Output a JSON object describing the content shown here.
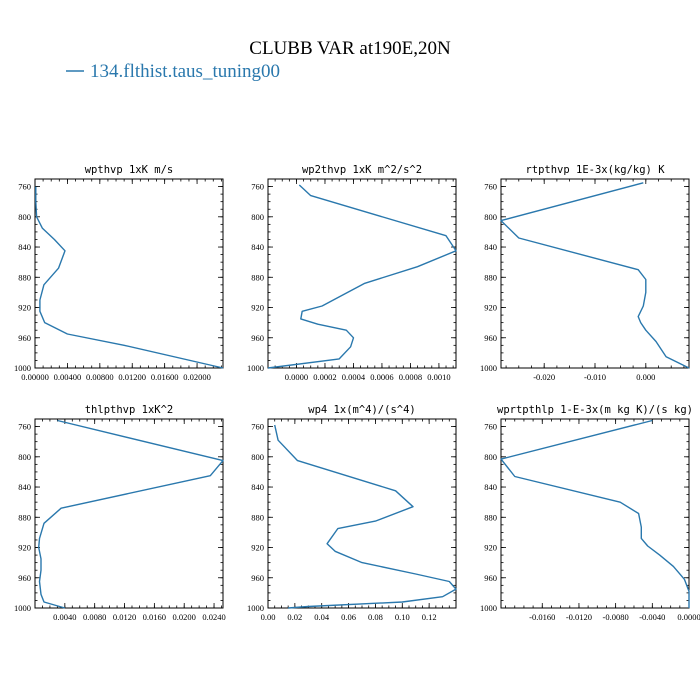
{
  "title": "CLUBB VAR at190E,20N",
  "legend": {
    "label": "134.flthist.taus_tuning00",
    "color": "#2a78ad"
  },
  "chart_data": [
    {
      "type": "line",
      "title": "wpthvp  1xK m/s",
      "xlim": [
        0.0,
        0.0232
      ],
      "ylim": [
        1000,
        750
      ],
      "xticks": [
        0.0,
        0.004,
        0.008,
        0.012,
        0.016,
        0.02
      ],
      "xtick_labels": [
        "0.00000",
        "0.00400",
        "0.00800",
        "0.01200",
        "0.01600",
        "0.02000"
      ],
      "yticks": [
        760,
        800,
        840,
        880,
        920,
        960,
        1000
      ],
      "series": [
        {
          "x": [
            0.0001,
            0.0001,
            0.0002,
            0.0009,
            0.0024,
            0.0037,
            0.0029,
            0.0011,
            0.0006,
            0.0006,
            0.0012,
            0.004,
            0.011,
            0.0232
          ],
          "y": [
            760,
            780,
            800,
            815,
            830,
            845,
            868,
            890,
            910,
            925,
            940,
            955,
            970,
            1000
          ]
        }
      ]
    },
    {
      "type": "line",
      "title": "wp2thvp  1xK m^2/s^2",
      "xlim": [
        -0.0002,
        0.00112
      ],
      "ylim": [
        1000,
        750
      ],
      "xticks": [
        0.0,
        0.0002,
        0.0004,
        0.0006,
        0.0008,
        0.001
      ],
      "xtick_labels": [
        "0.0000",
        "0.0002",
        "0.0004",
        "0.0006",
        "0.0008",
        "0.0010"
      ],
      "yticks": [
        760,
        800,
        840,
        880,
        920,
        960,
        1000
      ],
      "series": [
        {
          "x": [
            2e-05,
            0.0001,
            0.00105,
            0.00112,
            0.00085,
            0.00048,
            0.0003,
            0.00018,
            4e-05,
            3e-05,
            0.00015,
            0.00035,
            0.0004,
            0.00038,
            0.0003,
            -0.0002
          ],
          "y": [
            758,
            772,
            825,
            845,
            866,
            888,
            906,
            918,
            925,
            935,
            942,
            950,
            960,
            972,
            988,
            1000
          ]
        }
      ]
    },
    {
      "type": "line",
      "title": "rtpthvp  1E-3x(kg/kg) K",
      "xlim": [
        -0.0285,
        0.0085
      ],
      "ylim": [
        1000,
        750
      ],
      "xticks": [
        -0.02,
        -0.01,
        0.0
      ],
      "xtick_labels": [
        "-0.020",
        "-0.010",
        "0.000"
      ],
      "yticks": [
        760,
        800,
        840,
        880,
        920,
        960,
        1000
      ],
      "series": [
        {
          "x": [
            -0.0005,
            -0.0285,
            -0.025,
            -0.0015,
            0.0,
            0.0,
            -0.0005,
            -0.0015,
            -0.001,
            0.0,
            0.002,
            0.004,
            0.0085
          ],
          "y": [
            755,
            805,
            828,
            870,
            883,
            900,
            918,
            932,
            940,
            950,
            965,
            985,
            1000
          ]
        }
      ]
    },
    {
      "type": "line",
      "title": "thlpthvp  1xK^2",
      "xlim": [
        0.0,
        0.0252
      ],
      "ylim": [
        1000,
        750
      ],
      "xticks": [
        0.004,
        0.008,
        0.012,
        0.016,
        0.02,
        0.024
      ],
      "xtick_labels": [
        "0.0040",
        "0.0080",
        "0.0120",
        "0.0160",
        "0.0200",
        "0.0240"
      ],
      "yticks": [
        760,
        800,
        840,
        880,
        920,
        960,
        1000
      ],
      "series": [
        {
          "x": [
            0.003,
            0.0252,
            0.0235,
            0.0035,
            0.0012,
            0.0006,
            0.0005,
            0.0008,
            0.0008,
            0.0006,
            0.0008,
            0.0012,
            0.004
          ],
          "y": [
            752,
            805,
            825,
            868,
            888,
            908,
            920,
            935,
            950,
            965,
            982,
            992,
            1000
          ]
        }
      ]
    },
    {
      "type": "line",
      "title": "wp4  1x(m^4)/(s^4)",
      "xlim": [
        0.0,
        0.14
      ],
      "ylim": [
        1000,
        750
      ],
      "xticks": [
        0.0,
        0.02,
        0.04,
        0.06,
        0.08,
        0.1,
        0.12
      ],
      "xtick_labels": [
        "0.00",
        "0.02",
        "0.04",
        "0.06",
        "0.08",
        "0.10",
        "0.12"
      ],
      "yticks": [
        760,
        800,
        840,
        880,
        920,
        960,
        1000
      ],
      "series": [
        {
          "x": [
            0.005,
            0.0075,
            0.022,
            0.095,
            0.108,
            0.08,
            0.052,
            0.044,
            0.05,
            0.07,
            0.11,
            0.135,
            0.14,
            0.13,
            0.1,
            0.03,
            0.015
          ],
          "y": [
            758,
            778,
            805,
            845,
            866,
            885,
            895,
            915,
            925,
            940,
            955,
            965,
            975,
            985,
            992,
            998,
            1000
          ]
        }
      ]
    },
    {
      "type": "line",
      "title": "wprtpthlp  1-E-3x(m kg K)/(s kg)",
      "xlim": [
        -0.0205,
        0.0
      ],
      "ylim": [
        1000,
        750
      ],
      "xticks": [
        -0.016,
        -0.012,
        -0.008,
        -0.004,
        0.0
      ],
      "xtick_labels": [
        "-0.0160",
        "-0.0120",
        "-0.0080",
        "-0.0040",
        "0.0000"
      ],
      "yticks": [
        760,
        800,
        840,
        880,
        920,
        960,
        1000
      ],
      "series": [
        {
          "x": [
            -0.004,
            -0.0205,
            -0.019,
            -0.0075,
            -0.0055,
            -0.0052,
            -0.0052,
            -0.0045,
            -0.0032,
            -0.0017,
            -0.0005,
            0.0,
            0.0
          ],
          "y": [
            752,
            803,
            826,
            860,
            875,
            893,
            908,
            918,
            930,
            945,
            962,
            978,
            1000
          ]
        }
      ]
    }
  ]
}
